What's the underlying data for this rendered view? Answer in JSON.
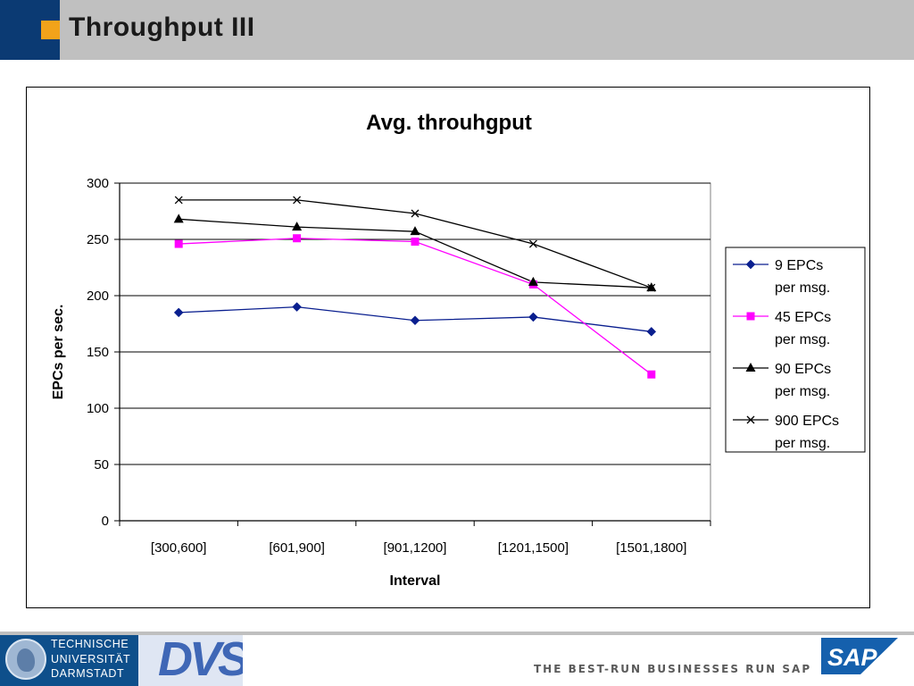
{
  "slide": {
    "title": "Throughput III",
    "accent_color": "#f2a31a",
    "brand_color": "#0b3a73"
  },
  "footer": {
    "university_lines": [
      "TECHNISCHE",
      "UNIVERSITÄT",
      "DARMSTADT"
    ],
    "group_logo": "DVS",
    "tagline": "THE BEST-RUN BUSINESSES RUN SAP",
    "sap_logo": "SAP"
  },
  "chart_data": {
    "type": "line",
    "title": "Avg. throuhgput",
    "xlabel": "Interval",
    "ylabel": "EPCs per sec.",
    "categories": [
      "[300,600]",
      "[601,900]",
      "[901,1200]",
      "[1201,1500]",
      "[1501,1800]"
    ],
    "ylim": [
      0,
      300
    ],
    "yticks": [
      0,
      50,
      100,
      150,
      200,
      250,
      300
    ],
    "grid": "horizontal",
    "legend_position": "right",
    "series": [
      {
        "name": "9 EPCs per msg.",
        "legend_lines": [
          "9 EPCs",
          "per msg."
        ],
        "color": "#0a1f8f",
        "marker": "diamond",
        "values": [
          185,
          190,
          178,
          181,
          168
        ]
      },
      {
        "name": "45 EPCs per msg.",
        "legend_lines": [
          "45 EPCs",
          "per msg."
        ],
        "color": "#ff00ff",
        "marker": "square",
        "values": [
          246,
          251,
          248,
          210,
          130
        ]
      },
      {
        "name": "90 EPCs per msg.",
        "legend_lines": [
          "90 EPCs",
          "per msg."
        ],
        "color": "#000000",
        "marker": "triangle",
        "values": [
          268,
          261,
          257,
          212,
          207
        ]
      },
      {
        "name": "900 EPCs per msg.",
        "legend_lines": [
          "900 EPCs",
          "per msg."
        ],
        "color": "#000000",
        "marker": "x",
        "values": [
          285,
          285,
          273,
          246,
          207
        ]
      }
    ]
  }
}
